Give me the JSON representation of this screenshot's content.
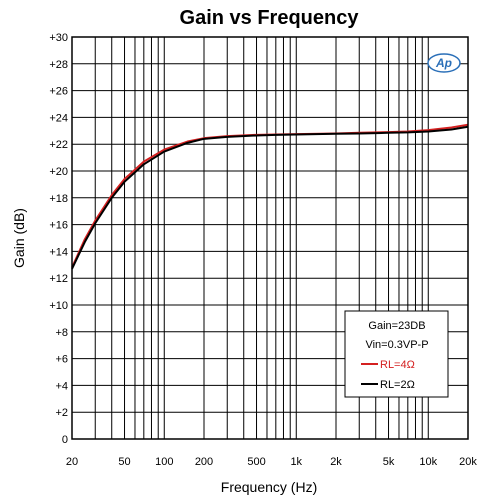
{
  "chart_data": {
    "type": "line",
    "title": "Gain vs Frequency",
    "xlabel": "Frequency (Hz)",
    "ylabel": "Gain (dB)",
    "xscale": "log",
    "xlim": [
      20,
      20000
    ],
    "ylim": [
      0,
      30
    ],
    "grid": true,
    "x_tick_values": [
      20,
      50,
      100,
      200,
      500,
      1000,
      2000,
      5000,
      10000,
      20000
    ],
    "x_tick_labels": [
      "20",
      "50",
      "100",
      "200",
      "500",
      "1k",
      "2k",
      "5k",
      "10k",
      "20k"
    ],
    "y_tick_values": [
      0,
      2,
      4,
      6,
      8,
      10,
      12,
      14,
      16,
      18,
      20,
      22,
      24,
      26,
      28,
      30
    ],
    "y_tick_labels": [
      "0",
      "+2",
      "+4",
      "+6",
      "+8",
      "+10",
      "+12",
      "+14",
      "+16",
      "+18",
      "+20",
      "+22",
      "+24",
      "+26",
      "+28",
      "+30"
    ],
    "legend_position": "bottom-right",
    "annotations": [
      "Gain=23DB",
      "Vin=0.3VP-P"
    ],
    "logo_text": "Ap",
    "series": [
      {
        "name": "RL=4Ω",
        "color": "#d42020",
        "x": [
          20,
          25,
          30,
          40,
          50,
          70,
          100,
          150,
          200,
          300,
          500,
          700,
          1000,
          2000,
          3000,
          5000,
          7000,
          10000,
          15000,
          20000
        ],
        "y": [
          12.8,
          14.9,
          16.3,
          18.2,
          19.4,
          20.7,
          21.6,
          22.2,
          22.45,
          22.6,
          22.7,
          22.72,
          22.75,
          22.8,
          22.85,
          22.9,
          22.95,
          23.05,
          23.25,
          23.45
        ]
      },
      {
        "name": "RL=2Ω",
        "color": "#000000",
        "x": [
          20,
          25,
          30,
          40,
          50,
          70,
          100,
          150,
          200,
          300,
          500,
          700,
          1000,
          2000,
          3000,
          5000,
          7000,
          10000,
          15000,
          20000
        ],
        "y": [
          12.7,
          14.7,
          16.1,
          18.0,
          19.2,
          20.5,
          21.45,
          22.1,
          22.4,
          22.55,
          22.65,
          22.7,
          22.72,
          22.78,
          22.8,
          22.85,
          22.88,
          22.95,
          23.1,
          23.3
        ]
      }
    ]
  }
}
